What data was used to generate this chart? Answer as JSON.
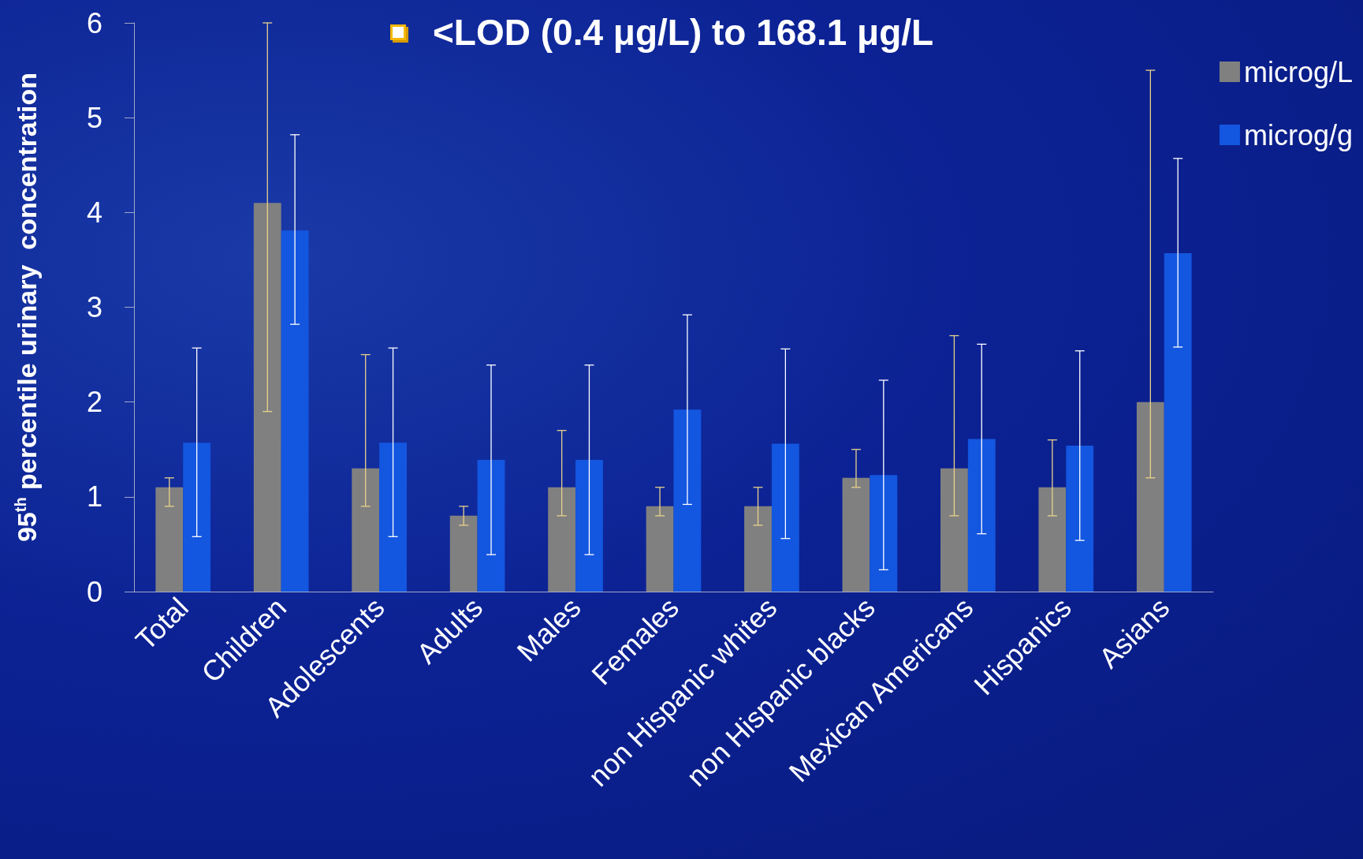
{
  "chart_data": {
    "type": "bar",
    "title": "<LOD (0.4 μg/L) to 168.1 μg/L",
    "ylabel": "95$^{th}$ percentile urinary  concentration",
    "categories": [
      "Total",
      "Children",
      "Adolescents",
      "Adults",
      "Males",
      "Females",
      "non Hispanic whites",
      "non Hispanic blacks",
      "Mexican Americans",
      "Hispanics",
      "Asians"
    ],
    "series": [
      {
        "name": "microg/L",
        "color": "#808080",
        "values": [
          1.1,
          4.1,
          1.3,
          0.8,
          1.1,
          0.9,
          0.9,
          1.2,
          1.3,
          1.1,
          2.0
        ],
        "errors": [
          [
            0.9,
            1.2
          ],
          [
            1.9,
            6.0
          ],
          [
            0.9,
            2.5
          ],
          [
            0.7,
            0.9
          ],
          [
            0.8,
            1.7
          ],
          [
            0.8,
            1.1
          ],
          [
            0.7,
            1.1
          ],
          [
            1.1,
            1.5
          ],
          [
            0.8,
            2.7
          ],
          [
            0.8,
            1.6
          ],
          [
            1.2,
            5.5
          ]
        ]
      },
      {
        "name": "microg/g",
        "color": "#1356e0",
        "values": [
          1.57,
          3.81,
          1.57,
          1.39,
          1.39,
          1.92,
          1.56,
          1.23,
          1.61,
          1.54,
          3.57
        ],
        "errors": [
          [
            0.58,
            2.57
          ],
          [
            2.82,
            4.82
          ],
          [
            0.58,
            2.57
          ],
          [
            0.39,
            2.39
          ],
          [
            0.39,
            2.39
          ],
          [
            0.92,
            2.92
          ],
          [
            0.56,
            2.56
          ],
          [
            0.23,
            2.23
          ],
          [
            0.61,
            2.61
          ],
          [
            0.54,
            2.54
          ],
          [
            2.58,
            4.57
          ]
        ]
      }
    ],
    "ylim": [
      0,
      6
    ],
    "yticks": [
      0,
      1,
      2,
      3,
      4,
      5,
      6
    ],
    "grid": false,
    "legend": "top right"
  }
}
